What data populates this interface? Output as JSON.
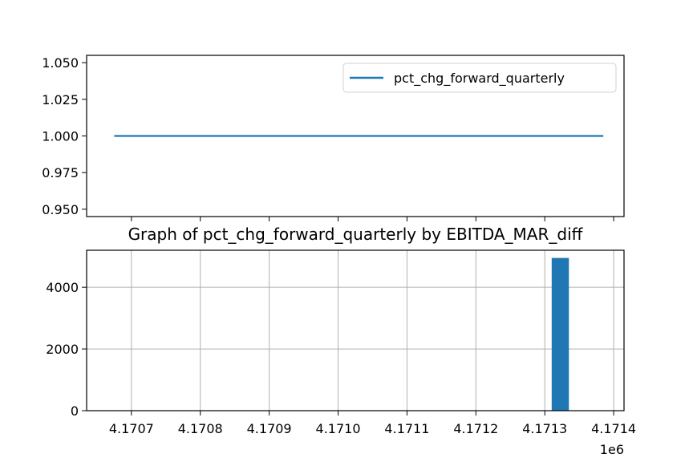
{
  "chart_data": [
    {
      "type": "line",
      "title": "",
      "xlabel": "",
      "ylabel": "",
      "series": [
        {
          "name": "pct_chg_forward_quarterly",
          "color": "#1f77b4",
          "x": [
            4170675,
            4171385
          ],
          "y": [
            1.0,
            1.0
          ]
        }
      ],
      "xlim": [
        4170635,
        4171415
      ],
      "ylim": [
        0.945,
        1.055
      ],
      "yticks": [
        0.95,
        0.975,
        1.0,
        1.025,
        1.05
      ],
      "ytick_labels": [
        "0.950",
        "0.975",
        "1.000",
        "1.025",
        "1.050"
      ],
      "xticks": [
        4170700,
        4170800,
        4170900,
        4171000,
        4171100,
        4171200,
        4171300,
        4171400
      ],
      "xtick_labels": [],
      "grid": false,
      "legend": "upper-right"
    },
    {
      "type": "bar",
      "title": "Graph of pct_chg_forward_quarterly by EBITDA_MAR_diff",
      "xlabel": "",
      "ylabel": "",
      "color": "#1f77b4",
      "bars": [
        {
          "x0": 4171310,
          "x1": 4171335,
          "value": 4950
        }
      ],
      "xlim": [
        4170635,
        4171415
      ],
      "ylim": [
        0,
        5200
      ],
      "xticks": [
        4170700,
        4170800,
        4170900,
        4171000,
        4171100,
        4171200,
        4171300,
        4171400
      ],
      "xtick_labels": [
        "4.1707",
        "4.1708",
        "4.1709",
        "4.1710",
        "4.1711",
        "4.1712",
        "4.1713",
        "4.1714"
      ],
      "x_offset_label": "1e6",
      "yticks": [
        0,
        2000,
        4000
      ],
      "ytick_labels": [
        "0",
        "2000",
        "4000"
      ],
      "grid": true
    }
  ]
}
